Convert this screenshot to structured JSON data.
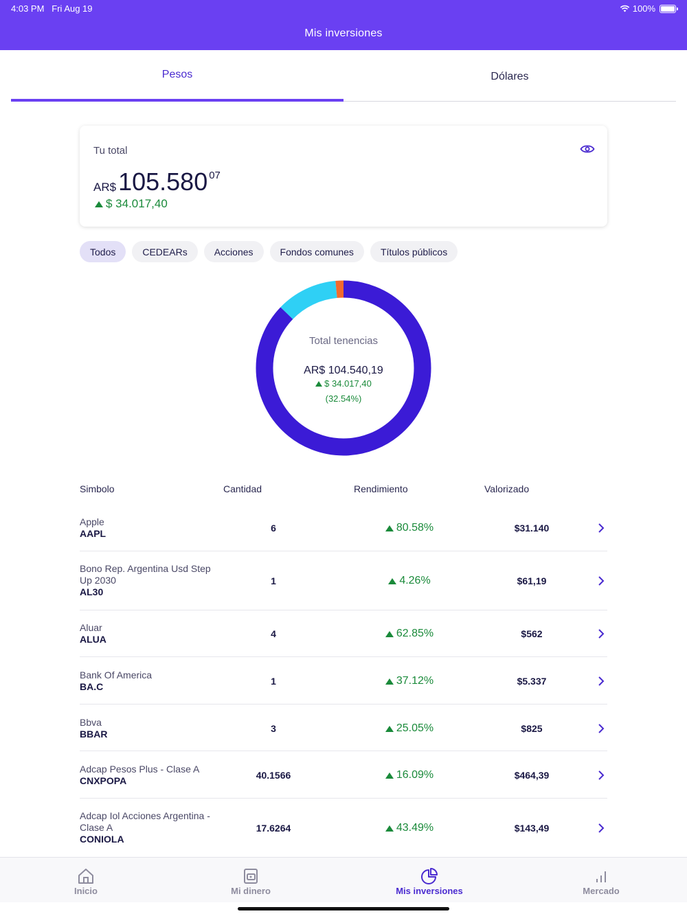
{
  "status_bar": {
    "time": "4:03 PM",
    "date": "Fri Aug 19",
    "battery": "100%"
  },
  "header": {
    "title": "Mis inversiones"
  },
  "tabs": [
    {
      "label": "Pesos",
      "active": true
    },
    {
      "label": "Dólares",
      "active": false
    }
  ],
  "total_card": {
    "label": "Tu total",
    "currency": "AR$",
    "amount_int": "105.580",
    "amount_dec": "07",
    "change": "$ 34.017,40"
  },
  "filters": [
    {
      "label": "Todos",
      "active": true
    },
    {
      "label": "CEDEARs",
      "active": false
    },
    {
      "label": "Acciones",
      "active": false
    },
    {
      "label": "Fondos comunes",
      "active": false
    },
    {
      "label": "Títulos públicos",
      "active": false
    }
  ],
  "donut": {
    "label": "Total tenencias",
    "total": "AR$ 104.540,19",
    "change": "$ 34.017,40",
    "percent": "(32.54%)",
    "segments": [
      {
        "fraction": 0.872,
        "color": "#3b1bd6"
      },
      {
        "fraction": 0.113,
        "color": "#2fd0f5"
      },
      {
        "fraction": 0.015,
        "color": "#f26a2e"
      }
    ]
  },
  "table": {
    "headers": {
      "simbolo": "Simbolo",
      "cantidad": "Cantidad",
      "rendimiento": "Rendimiento",
      "valorizado": "Valorizado"
    },
    "rows": [
      {
        "name": "Apple",
        "symbol": "AAPL",
        "qty": "6",
        "rend": "80.58%",
        "val": "$31.140"
      },
      {
        "name": "Bono Rep. Argentina Usd Step Up 2030",
        "symbol": "AL30",
        "qty": "1",
        "rend": "4.26%",
        "val": "$61,19"
      },
      {
        "name": "Aluar",
        "symbol": "ALUA",
        "qty": "4",
        "rend": "62.85%",
        "val": "$562"
      },
      {
        "name": "Bank Of America",
        "symbol": "BA.C",
        "qty": "1",
        "rend": "37.12%",
        "val": "$5.337"
      },
      {
        "name": "Bbva",
        "symbol": "BBAR",
        "qty": "3",
        "rend": "25.05%",
        "val": "$825"
      },
      {
        "name": "Adcap Pesos Plus - Clase A",
        "symbol": "CNXPOPA",
        "qty": "40.1566",
        "rend": "16.09%",
        "val": "$464,39"
      },
      {
        "name": "Adcap Iol Acciones Argentina - Clase A",
        "symbol": "CONIOLA",
        "qty": "17.6264",
        "rend": "43.49%",
        "val": "$143,49"
      }
    ]
  },
  "bottom_nav": [
    {
      "label": "Inicio",
      "icon": "home-icon",
      "active": false
    },
    {
      "label": "Mi dinero",
      "icon": "wallet-icon",
      "active": false
    },
    {
      "label": "Mis inversiones",
      "icon": "pie-chart-icon",
      "active": true
    },
    {
      "label": "Mercado",
      "icon": "bar-chart-icon",
      "active": false
    }
  ],
  "colors": {
    "brand": "#6a40f2",
    "positive": "#1a8a3a",
    "accent_text": "#4a2bd0"
  }
}
